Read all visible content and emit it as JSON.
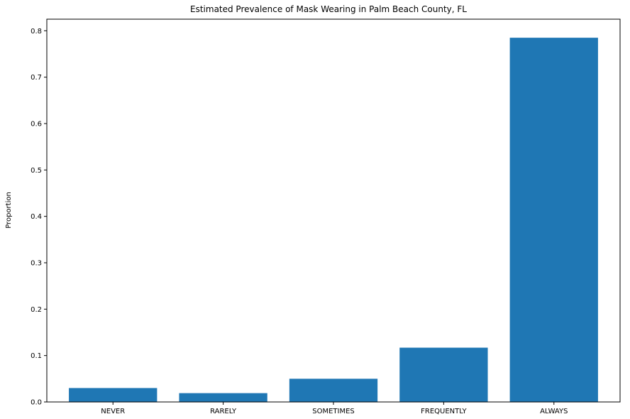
{
  "chart_data": {
    "type": "bar",
    "title": "Estimated Prevalence of Mask Wearing in Palm Beach County, FL",
    "xlabel": "",
    "ylabel": "Proportion",
    "categories": [
      "NEVER",
      "RARELY",
      "SOMETIMES",
      "FREQUENTLY",
      "ALWAYS"
    ],
    "values": [
      0.03,
      0.019,
      0.05,
      0.117,
      0.785
    ],
    "ylim": [
      0,
      0.825
    ],
    "yticks": [
      0.0,
      0.1,
      0.2,
      0.3,
      0.4,
      0.5,
      0.6,
      0.7,
      0.8
    ],
    "ytick_labels": [
      "0.0",
      "0.1",
      "0.2",
      "0.3",
      "0.4",
      "0.5",
      "0.6",
      "0.7",
      "0.8"
    ],
    "bar_color": "#1f77b4",
    "grid": false,
    "legend": false
  }
}
